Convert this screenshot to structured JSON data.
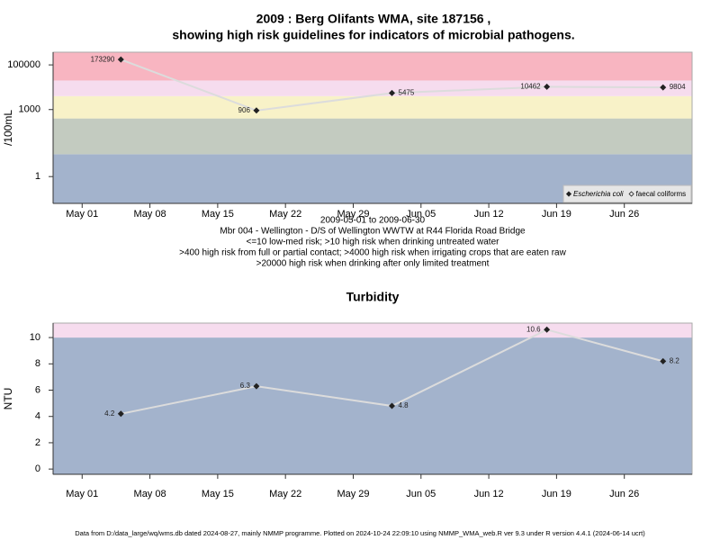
{
  "chart_data": [
    {
      "type": "line",
      "title": [
        "2009 : Berg Olifants WMA, site 187156 ,",
        "showing high risk guidelines for indicators of microbial pathogens."
      ],
      "notes": [
        "2009-05-01 to 2009-06-30",
        "Mbr 004 - Wellington - D/S of Wellington WWTW at R44 Florida Road Bridge",
        "<=10 low-med risk; >10 high risk when drinking untreated water",
        ">400 high risk from full or partial contact; >4000 high risk when irrigating crops that are eaten raw",
        ">20000 high risk when drinking after only limited treatment"
      ],
      "y_label": "/100mL",
      "x": [
        "2009-05-05",
        "2009-05-19",
        "2009-06-02",
        "2009-06-18",
        "2009-06-30"
      ],
      "xlim": [
        "2009-04-28",
        "2009-07-03"
      ],
      "xticks": [
        {
          "value": "2009-05-01",
          "label": "May 01"
        },
        {
          "value": "2009-05-08",
          "label": "May 08"
        },
        {
          "value": "2009-05-15",
          "label": "May 15"
        },
        {
          "value": "2009-05-22",
          "label": "May 22"
        },
        {
          "value": "2009-05-29",
          "label": "May 29"
        },
        {
          "value": "2009-06-05",
          "label": "Jun 05"
        },
        {
          "value": "2009-06-12",
          "label": "Jun 12"
        },
        {
          "value": "2009-06-19",
          "label": "Jun 19"
        },
        {
          "value": "2009-06-26",
          "label": "Jun 26"
        }
      ],
      "ylim": [
        0.063,
        370000
      ],
      "yticks": [
        1,
        1000,
        100000
      ],
      "log_scale": true,
      "thresholds": [
        10,
        400,
        4000,
        20000
      ],
      "band_colors": [
        "#a3b3cc",
        "#c3cbc0",
        "#f8f2c8",
        "#f6dcee",
        "#f8b5c1"
      ],
      "line_color": "#dcdcdc",
      "series": [
        {
          "name": "Escherichia coli",
          "color": "#222222",
          "values": [
            173290,
            906,
            5475,
            10462,
            9804
          ]
        },
        {
          "name": "faecal coliforms",
          "color": "#222222",
          "values": [
            null,
            null,
            null,
            null,
            null
          ]
        }
      ],
      "legend_position": "bottom-right"
    },
    {
      "type": "line",
      "title": "Turbidity",
      "y_label": "NTU",
      "x": [
        "2009-05-05",
        "2009-05-19",
        "2009-06-02",
        "2009-06-18",
        "2009-06-30"
      ],
      "xlim": [
        "2009-04-28",
        "2009-07-03"
      ],
      "xticks": [
        {
          "value": "2009-05-01",
          "label": "May 01"
        },
        {
          "value": "2009-05-08",
          "label": "May 08"
        },
        {
          "value": "2009-05-15",
          "label": "May 15"
        },
        {
          "value": "2009-05-22",
          "label": "May 22"
        },
        {
          "value": "2009-05-29",
          "label": "May 29"
        },
        {
          "value": "2009-06-05",
          "label": "Jun 05"
        },
        {
          "value": "2009-06-12",
          "label": "Jun 12"
        },
        {
          "value": "2009-06-19",
          "label": "Jun 19"
        },
        {
          "value": "2009-06-26",
          "label": "Jun 26"
        }
      ],
      "ylim": [
        -0.4,
        11.1
      ],
      "yticks": [
        0,
        2,
        4,
        6,
        8,
        10
      ],
      "log_scale": false,
      "thresholds": [
        10
      ],
      "band_colors": [
        "#a3b3cc",
        "#f6dcee"
      ],
      "line_color": "#dcdcdc",
      "series": [
        {
          "color": "#222222",
          "values": [
            4.2,
            6.3,
            4.8,
            10.6,
            8.2
          ]
        }
      ]
    }
  ],
  "footer": "Data from D:/data_large/wq/wms.db dated 2024-08-27, mainly NMMP programme. Plotted on 2024-10-24 22:09:10 using NMMP_WMA_web.R ver 9.3 under R version 4.4.1 (2024-06-14 ucrt)"
}
